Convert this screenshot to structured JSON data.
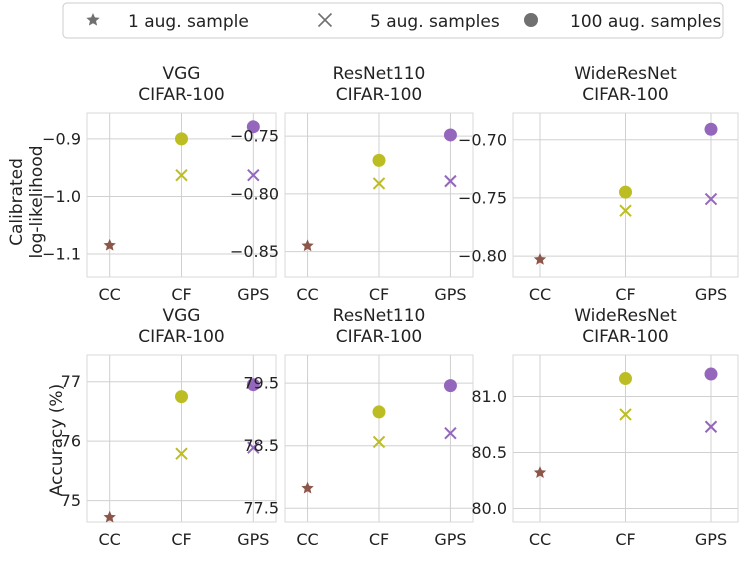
{
  "legend": {
    "items": [
      {
        "label": "1 aug. sample",
        "marker": "star"
      },
      {
        "label": "5 aug. samples",
        "marker": "x"
      },
      {
        "label": "100 aug. samples",
        "marker": "circle"
      }
    ]
  },
  "colors": {
    "CC": "#8c564b",
    "CF": "#bcbd22",
    "GPS": "#9467bd",
    "legend_marker": "#707070",
    "grid": "#d0d0d0"
  },
  "row_labels": {
    "top_line1": "Calibrated",
    "top_line2": "log-likelihood",
    "bottom": "Accuracy (%)"
  },
  "chart_data": [
    {
      "type": "scatter",
      "row": "Calibrated log-likelihood",
      "title": [
        "VGG",
        "CIFAR-100"
      ],
      "categories": [
        "CC",
        "CF",
        "GPS"
      ],
      "ylim": [
        -1.14,
        -0.855
      ],
      "yticks": [
        -1.1,
        -1.0,
        -0.9
      ],
      "yticklabels": [
        "−1.1",
        "−1.0",
        "−0.9"
      ],
      "series": [
        {
          "name": "1 aug. sample",
          "marker": "star",
          "points": [
            {
              "x": "CC",
              "y": -1.085
            }
          ]
        },
        {
          "name": "5 aug. samples",
          "marker": "x",
          "points": [
            {
              "x": "CF",
              "y": -0.963
            },
            {
              "x": "GPS",
              "y": -0.963
            }
          ]
        },
        {
          "name": "100 aug. samples",
          "marker": "circle",
          "points": [
            {
              "x": "CF",
              "y": -0.9
            },
            {
              "x": "GPS",
              "y": -0.879
            }
          ]
        }
      ]
    },
    {
      "type": "scatter",
      "row": "Calibrated log-likelihood",
      "title": [
        "ResNet110",
        "CIFAR-100"
      ],
      "categories": [
        "CC",
        "CF",
        "GPS"
      ],
      "ylim": [
        -0.872,
        -0.73
      ],
      "yticks": [
        -0.85,
        -0.8,
        -0.75
      ],
      "yticklabels": [
        "−0.85",
        "−0.80",
        "−0.75"
      ],
      "series": [
        {
          "name": "1 aug. sample",
          "marker": "star",
          "points": [
            {
              "x": "CC",
              "y": -0.845
            }
          ]
        },
        {
          "name": "5 aug. samples",
          "marker": "x",
          "points": [
            {
              "x": "CF",
              "y": -0.791
            },
            {
              "x": "GPS",
              "y": -0.789
            }
          ]
        },
        {
          "name": "100 aug. samples",
          "marker": "circle",
          "points": [
            {
              "x": "CF",
              "y": -0.771
            },
            {
              "x": "GPS",
              "y": -0.749
            }
          ]
        }
      ]
    },
    {
      "type": "scatter",
      "row": "Calibrated log-likelihood",
      "title": [
        "WideResNet",
        "CIFAR-100"
      ],
      "categories": [
        "CC",
        "CF",
        "GPS"
      ],
      "ylim": [
        -0.818,
        -0.677
      ],
      "yticks": [
        -0.8,
        -0.75,
        -0.7
      ],
      "yticklabels": [
        "−0.80",
        "−0.75",
        "−0.70"
      ],
      "series": [
        {
          "name": "1 aug. sample",
          "marker": "star",
          "points": [
            {
              "x": "CC",
              "y": -0.803
            }
          ]
        },
        {
          "name": "5 aug. samples",
          "marker": "x",
          "points": [
            {
              "x": "CF",
              "y": -0.761
            },
            {
              "x": "GPS",
              "y": -0.751
            }
          ]
        },
        {
          "name": "100 aug. samples",
          "marker": "circle",
          "points": [
            {
              "x": "CF",
              "y": -0.745
            },
            {
              "x": "GPS",
              "y": -0.691
            }
          ]
        }
      ]
    },
    {
      "type": "scatter",
      "row": "Accuracy (%)",
      "title": [
        "VGG",
        "CIFAR-100"
      ],
      "categories": [
        "CC",
        "CF",
        "GPS"
      ],
      "ylim": [
        74.64,
        77.45
      ],
      "yticks": [
        75,
        76,
        77
      ],
      "yticklabels": [
        "75",
        "76",
        "77"
      ],
      "series": [
        {
          "name": "1 aug. sample",
          "marker": "star",
          "points": [
            {
              "x": "CC",
              "y": 74.72
            }
          ]
        },
        {
          "name": "5 aug. samples",
          "marker": "x",
          "points": [
            {
              "x": "CF",
              "y": 75.79
            },
            {
              "x": "GPS",
              "y": 75.89
            }
          ]
        },
        {
          "name": "100 aug. samples",
          "marker": "circle",
          "points": [
            {
              "x": "CF",
              "y": 76.75
            },
            {
              "x": "GPS",
              "y": 76.95
            }
          ]
        }
      ]
    },
    {
      "type": "scatter",
      "row": "Accuracy (%)",
      "title": [
        "ResNet110",
        "CIFAR-100"
      ],
      "categories": [
        "CC",
        "CF",
        "GPS"
      ],
      "ylim": [
        77.28,
        79.95
      ],
      "yticks": [
        77.5,
        78.5,
        79.5
      ],
      "yticklabels": [
        "77.5",
        "78.5",
        "79.5"
      ],
      "series": [
        {
          "name": "1 aug. sample",
          "marker": "star",
          "points": [
            {
              "x": "CC",
              "y": 77.82
            }
          ]
        },
        {
          "name": "5 aug. samples",
          "marker": "x",
          "points": [
            {
              "x": "CF",
              "y": 78.56
            },
            {
              "x": "GPS",
              "y": 78.7
            }
          ]
        },
        {
          "name": "100 aug. samples",
          "marker": "circle",
          "points": [
            {
              "x": "CF",
              "y": 79.04
            },
            {
              "x": "GPS",
              "y": 79.46
            }
          ]
        }
      ]
    },
    {
      "type": "scatter",
      "row": "Accuracy (%)",
      "title": [
        "WideResNet",
        "CIFAR-100"
      ],
      "categories": [
        "CC",
        "CF",
        "GPS"
      ],
      "ylim": [
        79.88,
        81.37
      ],
      "yticks": [
        80.0,
        80.5,
        81.0
      ],
      "yticklabels": [
        "80.0",
        "80.5",
        "81.0"
      ],
      "series": [
        {
          "name": "1 aug. sample",
          "marker": "star",
          "points": [
            {
              "x": "CC",
              "y": 80.32
            }
          ]
        },
        {
          "name": "5 aug. samples",
          "marker": "x",
          "points": [
            {
              "x": "CF",
              "y": 80.84
            },
            {
              "x": "GPS",
              "y": 80.73
            }
          ]
        },
        {
          "name": "100 aug. samples",
          "marker": "circle",
          "points": [
            {
              "x": "CF",
              "y": 81.16
            },
            {
              "x": "GPS",
              "y": 81.2
            }
          ]
        }
      ]
    }
  ]
}
